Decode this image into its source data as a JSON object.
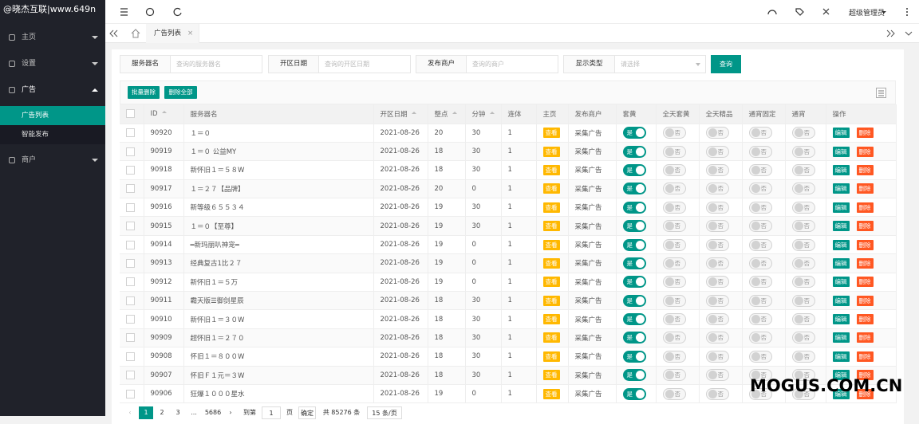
{
  "sidebar": {
    "logo": "@晓杰互联|www.649n",
    "menu": [
      {
        "label": "主页"
      },
      {
        "label": "设置"
      },
      {
        "label": "广告",
        "children": [
          "广告列表",
          "智能发布"
        ]
      },
      {
        "label": "商户"
      }
    ]
  },
  "header": {
    "user": "超级管理员"
  },
  "tabs": [
    "广告列表"
  ],
  "search": {
    "fields": [
      {
        "label": "服务器名",
        "placeholder": "查询的服务器名"
      },
      {
        "label": "开区日期",
        "placeholder": "查询的开区日期"
      },
      {
        "label": "发布商户",
        "placeholder": "查询的商户"
      },
      {
        "label": "显示类型",
        "placeholder": "请选择"
      }
    ],
    "button": "查询"
  },
  "toolbar": [
    "批量删除",
    "删除全部"
  ],
  "table": {
    "columns": [
      "ID",
      "服务器名",
      "开区日期",
      "整点",
      "分钟",
      "连体",
      "主页",
      "发布商户",
      "套黄",
      "全天套黄",
      "全天精品",
      "通宵固定",
      "通宵",
      "操作"
    ],
    "rows": [
      [
        90920,
        "１＝０",
        "2021-08-26",
        20,
        30,
        1,
        "查看",
        "采集广告",
        "是",
        "否",
        "否",
        "否",
        "否"
      ],
      [
        90919,
        "１＝０ 公益MY",
        "2021-08-26",
        18,
        30,
        1,
        "查看",
        "采集广告",
        "是",
        "否",
        "否",
        "否",
        "否"
      ],
      [
        90918,
        "新怀旧１＝５８W",
        "2021-08-26",
        18,
        30,
        1,
        "查看",
        "采集广告",
        "是",
        "否",
        "否",
        "否",
        "否"
      ],
      [
        90917,
        "１＝２７【品牌】",
        "2021-08-26",
        20,
        0,
        1,
        "查看",
        "采集广告",
        "是",
        "否",
        "否",
        "否",
        "否"
      ],
      [
        90916,
        "新等级６５５３４",
        "2021-08-26",
        19,
        30,
        1,
        "查看",
        "采集广告",
        "是",
        "否",
        "否",
        "否",
        "否"
      ],
      [
        90915,
        "１＝０【至尊】",
        "2021-08-26",
        19,
        30,
        1,
        "查看",
        "采集广告",
        "是",
        "否",
        "否",
        "否",
        "否"
      ],
      [
        90914,
        "━新玛丽叭神宠━",
        "2021-08-26",
        19,
        0,
        1,
        "查看",
        "采集广告",
        "是",
        "否",
        "否",
        "否",
        "否"
      ],
      [
        90913,
        "经典复古1比２７",
        "2021-08-26",
        19,
        0,
        1,
        "查看",
        "采集广告",
        "是",
        "否",
        "否",
        "否",
        "否"
      ],
      [
        90912,
        "新怀旧１＝５万",
        "2021-08-26",
        19,
        0,
        1,
        "查看",
        "采集广告",
        "是",
        "否",
        "否",
        "否",
        "否"
      ],
      [
        90911,
        "霸天版☰御剑星辰",
        "2021-08-26",
        18,
        30,
        1,
        "查看",
        "采集广告",
        "是",
        "否",
        "否",
        "否",
        "否"
      ],
      [
        90910,
        "新怀旧１＝３０W",
        "2021-08-26",
        18,
        30,
        1,
        "查看",
        "采集广告",
        "是",
        "否",
        "否",
        "否",
        "否"
      ],
      [
        90909,
        "超怀旧１＝２７０",
        "2021-08-26",
        18,
        30,
        1,
        "查看",
        "采集广告",
        "是",
        "否",
        "否",
        "否",
        "否"
      ],
      [
        90908,
        "怀旧１＝８００W",
        "2021-08-26",
        18,
        30,
        1,
        "查看",
        "采集广告",
        "是",
        "否",
        "否",
        "否",
        "否"
      ],
      [
        90907,
        "怀旧Ｆ１元＝３W",
        "2021-08-26",
        18,
        30,
        1,
        "查看",
        "采集广告",
        "是",
        "否",
        "否",
        "否",
        "否"
      ],
      [
        90906,
        "狂爆１０００星水",
        "2021-08-26",
        19,
        0,
        1,
        "查看",
        "采集广告",
        "是",
        "否",
        "否",
        "否",
        "否"
      ]
    ],
    "actions": [
      "编辑",
      "删除"
    ]
  },
  "pagination": {
    "pages": [
      1,
      2,
      3,
      "...",
      5686
    ],
    "goto_label": "到第",
    "goto_value": 1,
    "page_unit": "页",
    "confirm": "确定",
    "total": "共 85276 条",
    "size": "15 条/页"
  },
  "watermark": "MOGUS.COM.CN"
}
